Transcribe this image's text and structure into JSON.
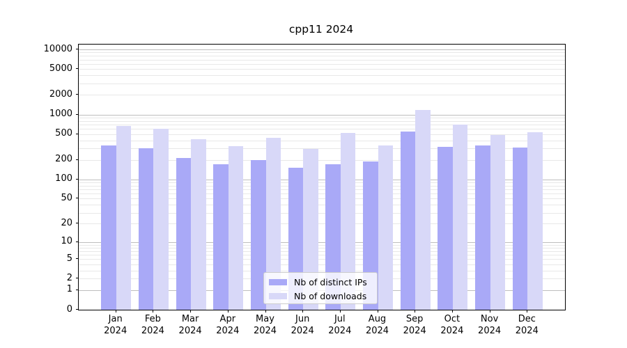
{
  "figure": {
    "title": "cpp11 2024"
  },
  "chart_data": {
    "type": "bar",
    "title": "cpp11 2024",
    "categories": [
      "Jan 2024",
      "Feb 2024",
      "Mar 2024",
      "Apr 2024",
      "May 2024",
      "Jun 2024",
      "Jul 2024",
      "Aug 2024",
      "Sep 2024",
      "Oct 2024",
      "Nov 2024",
      "Dec 2024"
    ],
    "series": [
      {
        "name": "Nb of distinct IPs",
        "color": "#a9a9f7",
        "values": [
          337,
          300,
          215,
          172,
          198,
          150,
          170,
          190,
          540,
          318,
          335,
          313
        ]
      },
      {
        "name": "Nb of downloads",
        "color": "#d8d8f8",
        "values": [
          660,
          605,
          420,
          324,
          443,
          295,
          520,
          335,
          1160,
          695,
          488,
          535
        ]
      }
    ],
    "xlabel": "",
    "ylabel": "",
    "y_scale": "symlog-log10(v+1)",
    "y_tick_values": [
      10000,
      5000,
      2000,
      1000,
      500,
      200,
      100,
      50,
      20,
      10,
      5,
      2,
      1,
      0
    ],
    "y_tick_labels": [
      "10000",
      "5000",
      "2000",
      "1000",
      "500",
      "200",
      "100",
      "50",
      "20",
      "10",
      "5",
      "2",
      "1",
      "0"
    ],
    "ylim": [
      0,
      12000
    ],
    "grid": true,
    "legend_position": "lower center"
  },
  "legend": {
    "items": [
      "Nb of distinct IPs",
      "Nb of downloads"
    ]
  }
}
